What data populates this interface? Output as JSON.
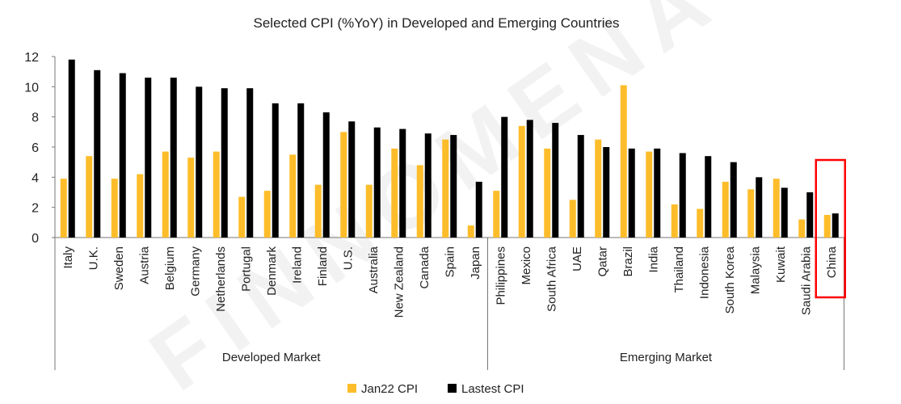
{
  "chart_data": {
    "type": "bar",
    "title": "Selected CPI (%YoY) in Developed and Emerging Countries",
    "xlabel": "",
    "ylabel": "",
    "ylim": [
      0,
      12
    ],
    "yticks": [
      0,
      2,
      4,
      6,
      8,
      10,
      12
    ],
    "grid": false,
    "legend_position": "bottom-center",
    "categories": [
      "Italy",
      "U.K.",
      "Sweden",
      "Austria",
      "Belgium",
      "Germany",
      "Netherlands",
      "Portugal",
      "Denmark",
      "Ireland",
      "Finland",
      "U.S.",
      "Australia",
      "New Zealand",
      "Canada",
      "Spain",
      "Japan",
      "Philippines",
      "Mexico",
      "South Africa",
      "UAE",
      "Qatar",
      "Brazil",
      "India",
      "Thailand",
      "Indonesia",
      "South Korea",
      "Malaysia",
      "Kuwait",
      "Saudi Arabia",
      "China"
    ],
    "groups": [
      {
        "name": "Developed Market",
        "count": 17
      },
      {
        "name": "Emerging Market",
        "count": 14
      }
    ],
    "series": [
      {
        "name": "Jan22 CPI",
        "color": "#FDBD2A",
        "values": [
          3.9,
          5.4,
          3.9,
          4.2,
          5.7,
          5.3,
          5.7,
          2.7,
          3.1,
          5.5,
          3.5,
          7.0,
          3.5,
          5.9,
          4.8,
          6.5,
          0.8,
          3.1,
          7.4,
          5.9,
          2.5,
          6.5,
          10.1,
          5.7,
          2.2,
          1.9,
          3.7,
          3.2,
          3.9,
          1.2,
          1.5
        ]
      },
      {
        "name": "Lastest CPI",
        "color": "#000000",
        "values": [
          11.8,
          11.1,
          10.9,
          10.6,
          10.6,
          10.0,
          9.9,
          9.9,
          8.9,
          8.9,
          8.3,
          7.7,
          7.3,
          7.2,
          6.9,
          6.8,
          3.7,
          8.0,
          7.8,
          7.6,
          6.8,
          6.0,
          5.9,
          5.9,
          5.6,
          5.4,
          5.0,
          4.0,
          3.3,
          3.0,
          1.6
        ]
      }
    ],
    "highlight": {
      "category": "China",
      "color": "#FF0000"
    }
  },
  "watermark": "FINNOMENA"
}
